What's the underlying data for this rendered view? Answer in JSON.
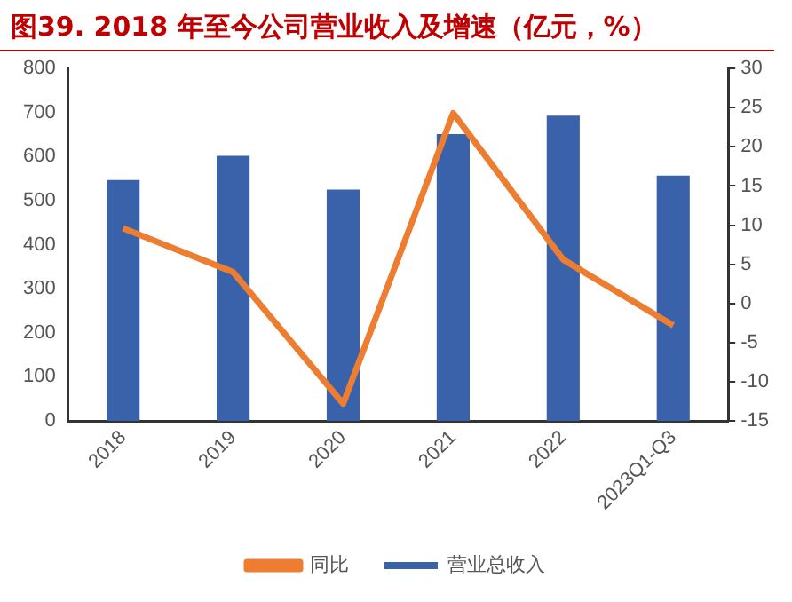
{
  "chart_data": {
    "type": "bar",
    "title": "图39. 2018 年至今公司营业收入及增速（亿元，%）",
    "categories": [
      "2018",
      "2019",
      "2020",
      "2021",
      "2022",
      "2023Q1-Q3"
    ],
    "series": [
      {
        "name": "营业总收入",
        "color": "#3a62ab",
        "values": [
          547,
          602,
          525,
          651,
          693,
          557
        ]
      },
      {
        "name": "同比",
        "type": "line",
        "axis": "y2",
        "color": "#ed7d31",
        "values": [
          9.6,
          4.0,
          -12.8,
          24.3,
          5.6,
          -2.8
        ]
      }
    ],
    "ylim": [
      0,
      800
    ],
    "yticks": [
      0,
      100,
      200,
      300,
      400,
      500,
      600,
      700,
      800
    ],
    "y2lim": [
      -15,
      30
    ],
    "y2ticks": [
      -15,
      -10,
      -5,
      0,
      5,
      10,
      15,
      20,
      25,
      30
    ],
    "grid": false,
    "legend": "bottom",
    "marker": "none",
    "line_style": "solid"
  }
}
